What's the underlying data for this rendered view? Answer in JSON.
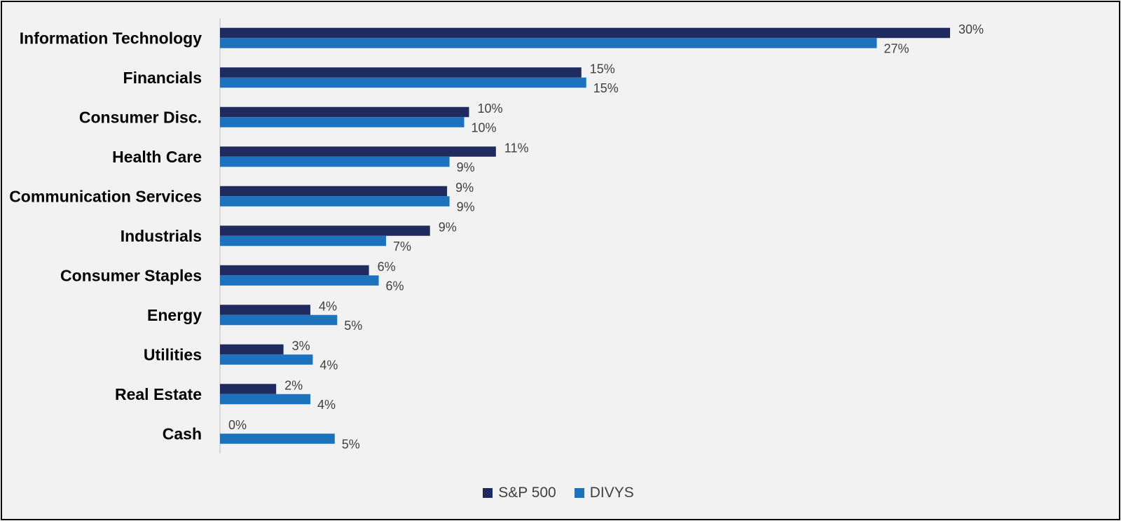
{
  "chart_data": {
    "type": "bar",
    "orientation": "horizontal",
    "title": "",
    "xlabel": "",
    "ylabel": "",
    "xlim": [
      0,
      30
    ],
    "grid": false,
    "legend_position": "bottom-center",
    "categories": [
      "Information Technology",
      "Financials",
      "Consumer Disc.",
      "Health Care",
      "Communication Services",
      "Industrials",
      "Consumer Staples",
      "Energy",
      "Utilities",
      "Real Estate",
      "Cash"
    ],
    "series": [
      {
        "name": "S&P 500",
        "color": "#1f2a5e",
        "values": [
          29.9,
          14.8,
          10.2,
          11.3,
          9.3,
          8.6,
          6.1,
          3.7,
          2.6,
          2.3,
          0
        ],
        "labels": [
          "30%",
          "15%",
          "10%",
          "11%",
          "9%",
          "9%",
          "6%",
          "4%",
          "3%",
          "2%",
          "0%"
        ]
      },
      {
        "name": "DIVYS",
        "color": "#1c72bd",
        "values": [
          26.9,
          15.0,
          10.0,
          9.4,
          9.4,
          6.8,
          6.5,
          4.8,
          3.8,
          3.7,
          4.7
        ],
        "labels": [
          "27%",
          "15%",
          "10%",
          "9%",
          "9%",
          "7%",
          "6%",
          "5%",
          "4%",
          "4%",
          "5%"
        ]
      }
    ]
  }
}
